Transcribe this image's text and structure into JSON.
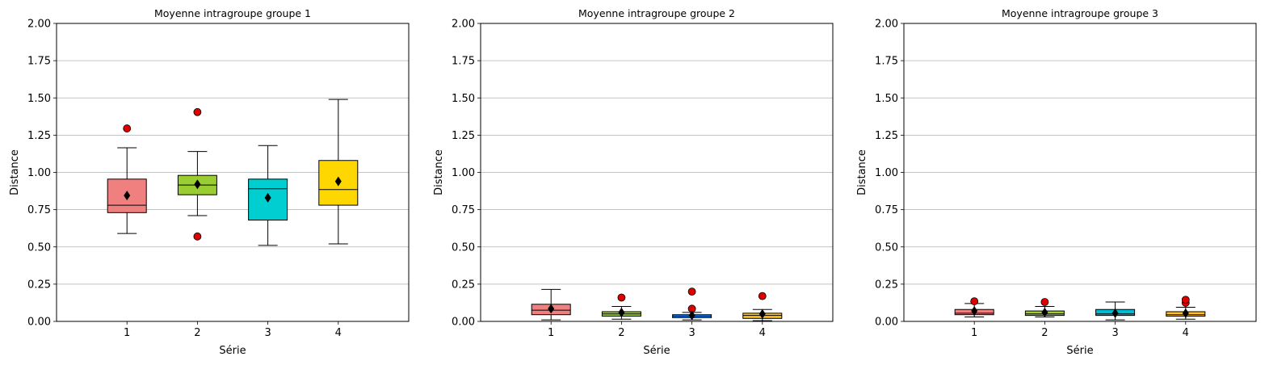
{
  "chart_data": [
    {
      "type": "box",
      "title": "Moyenne intragroupe groupe 1",
      "xlabel": "Série",
      "ylabel": "Distance",
      "ylim": [
        0,
        2.0
      ],
      "yticks": [
        "0.00",
        "0.25",
        "0.50",
        "0.75",
        "1.00",
        "1.25",
        "1.50",
        "1.75",
        "2.00"
      ],
      "categories": [
        "1",
        "2",
        "3",
        "4"
      ],
      "grid": "horizontal",
      "boxes": [
        {
          "category": "1",
          "min": 0.59,
          "q1": 0.73,
          "median": 0.78,
          "q3": 0.955,
          "max": 1.165,
          "mean": 0.845,
          "outliers": [
            1.295
          ],
          "color": "#f08080"
        },
        {
          "category": "2",
          "min": 0.71,
          "q1": 0.85,
          "median": 0.915,
          "q3": 0.98,
          "max": 1.14,
          "mean": 0.92,
          "outliers": [
            0.57,
            1.405
          ],
          "color": "#9acd32"
        },
        {
          "category": "3",
          "min": 0.51,
          "q1": 0.68,
          "median": 0.89,
          "q3": 0.955,
          "max": 1.18,
          "mean": 0.83,
          "outliers": [],
          "color": "#00ced1"
        },
        {
          "category": "4",
          "min": 0.52,
          "q1": 0.78,
          "median": 0.885,
          "q3": 1.08,
          "max": 1.49,
          "mean": 0.94,
          "outliers": [],
          "color": "#ffd700"
        }
      ]
    },
    {
      "type": "box",
      "title": "Moyenne intragroupe groupe 2",
      "xlabel": "Série",
      "ylabel": "Distance",
      "ylim": [
        0,
        2.0
      ],
      "yticks": [
        "0.00",
        "0.25",
        "0.50",
        "0.75",
        "1.00",
        "1.25",
        "1.50",
        "1.75",
        "2.00"
      ],
      "categories": [
        "1",
        "2",
        "3",
        "4"
      ],
      "grid": "horizontal",
      "boxes": [
        {
          "category": "1",
          "min": 0.01,
          "q1": 0.045,
          "median": 0.075,
          "q3": 0.115,
          "max": 0.215,
          "mean": 0.085,
          "outliers": [],
          "color": "#f08080"
        },
        {
          "category": "2",
          "min": 0.015,
          "q1": 0.035,
          "median": 0.05,
          "q3": 0.065,
          "max": 0.1,
          "mean": 0.06,
          "outliers": [
            0.16
          ],
          "color": "#9acd32"
        },
        {
          "category": "3",
          "min": 0.01,
          "q1": 0.025,
          "median": 0.035,
          "q3": 0.045,
          "max": 0.06,
          "mean": 0.04,
          "outliers": [
            0.085,
            0.2
          ],
          "color": "#1e90ff"
        },
        {
          "category": "4",
          "min": 0.005,
          "q1": 0.02,
          "median": 0.04,
          "q3": 0.055,
          "max": 0.08,
          "mean": 0.05,
          "outliers": [
            0.17
          ],
          "color": "#ffc125"
        }
      ]
    },
    {
      "type": "box",
      "title": "Moyenne intragroupe groupe 3",
      "xlabel": "Série",
      "ylabel": "Distance",
      "ylim": [
        0,
        2.0
      ],
      "yticks": [
        "0.00",
        "0.25",
        "0.50",
        "0.75",
        "1.00",
        "1.25",
        "1.50",
        "1.75",
        "2.00"
      ],
      "categories": [
        "1",
        "2",
        "3",
        "4"
      ],
      "grid": "horizontal",
      "boxes": [
        {
          "category": "1",
          "min": 0.03,
          "q1": 0.045,
          "median": 0.055,
          "q3": 0.08,
          "max": 0.12,
          "mean": 0.07,
          "outliers": [
            0.135
          ],
          "color": "#f08080"
        },
        {
          "category": "2",
          "min": 0.03,
          "q1": 0.04,
          "median": 0.05,
          "q3": 0.07,
          "max": 0.1,
          "mean": 0.06,
          "outliers": [
            0.13
          ],
          "color": "#9acd32"
        },
        {
          "category": "3",
          "min": 0.01,
          "q1": 0.04,
          "median": 0.05,
          "q3": 0.08,
          "max": 0.13,
          "mean": 0.055,
          "outliers": [],
          "color": "#00bcd4"
        },
        {
          "category": "4",
          "min": 0.015,
          "q1": 0.035,
          "median": 0.045,
          "q3": 0.065,
          "max": 0.095,
          "mean": 0.055,
          "outliers": [
            0.125,
            0.145
          ],
          "color": "#ffc125"
        }
      ]
    }
  ]
}
